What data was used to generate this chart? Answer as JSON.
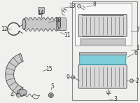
{
  "fig_bg": "#f0f0ee",
  "line_color": "#666666",
  "dark_line": "#444444",
  "label_color": "#333333",
  "air_filter_color": "#7ecfda",
  "housing_color": "#d8d8d8",
  "housing_dark": "#bbbbbb",
  "box_edge": "#888888",
  "white": "#f8f8f8",
  "figsize": [
    2.0,
    1.47
  ],
  "dpi": 100
}
